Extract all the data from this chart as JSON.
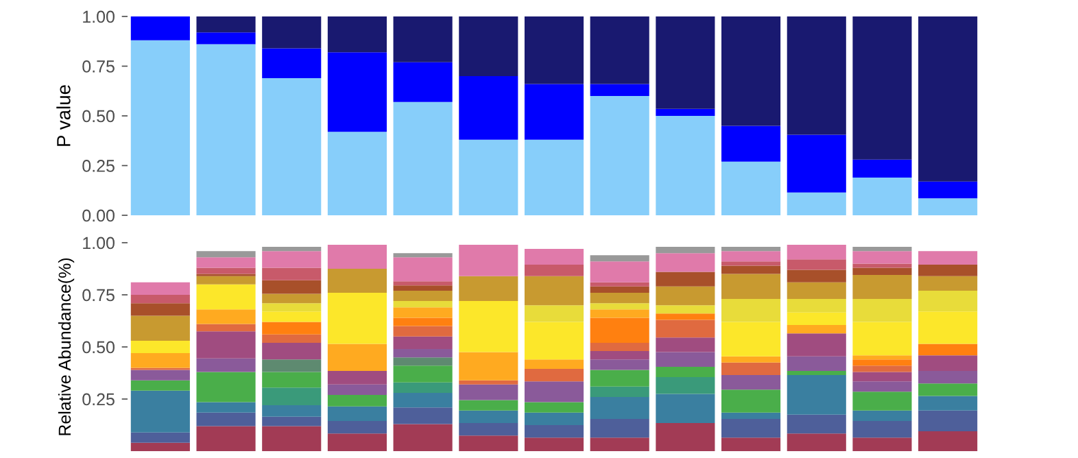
{
  "chart_data": [
    {
      "type": "bar",
      "stacked": true,
      "ylabel": "P value",
      "categories": [
        null,
        null,
        null,
        null,
        null,
        null,
        null,
        null,
        null,
        null,
        null,
        null,
        null
      ],
      "ylim": [
        0,
        1
      ],
      "yticks": [
        {
          "value": 0,
          "label": "0.00"
        },
        {
          "value": 0.25,
          "label": "0.25"
        },
        {
          "value": 0.5,
          "label": "0.50"
        },
        {
          "value": 0.75,
          "label": "0.75"
        },
        {
          "value": 1,
          "label": "1.00"
        }
      ],
      "tick_labels": "y",
      "grid": false,
      "legend": false,
      "series": [
        {
          "color": "#87cefa",
          "values": [
            0.88,
            0.86,
            0.69,
            0.42,
            0.57,
            0.38,
            0.38,
            0.6,
            0.5,
            0.27,
            0.115,
            0.19,
            0.085
          ]
        },
        {
          "color": "#0000ff",
          "values": [
            0.12,
            0.06,
            0.15,
            0.4,
            0.2,
            0.32,
            0.28,
            0.06,
            0.035,
            0.18,
            0.29,
            0.09,
            0.085
          ]
        },
        {
          "color": "#191970",
          "values": [
            null,
            0.08,
            0.16,
            0.18,
            0.23,
            0.3,
            0.34,
            0.34,
            0.465,
            0.55,
            0.595,
            0.72,
            0.83
          ]
        }
      ]
    },
    {
      "type": "bar",
      "stacked": true,
      "ylabel": "Relative Abundance(%)",
      "categories": [
        null,
        null,
        null,
        null,
        null,
        null,
        null,
        null,
        null,
        null,
        null,
        null,
        null
      ],
      "ylim": [
        0,
        1
      ],
      "yticks": [
        {
          "value": 0.25,
          "label": "0.25"
        },
        {
          "value": 0.5,
          "label": "0.50"
        },
        {
          "value": 0.75,
          "label": "0.75"
        },
        {
          "value": 1,
          "label": "1.00"
        }
      ],
      "tick_labels": "y",
      "grid": false,
      "legend": false,
      "series": [
        {
          "color": "#a23b55",
          "values": [
            0.04,
            0.12,
            0.12,
            0.085,
            0.13,
            0.075,
            0.065,
            0.065,
            0.135,
            0.065,
            0.085,
            0.065,
            0.095
          ]
        },
        {
          "color": "#4e5f9a",
          "values": [
            0.05,
            0.065,
            0.045,
            0.06,
            0.08,
            0.06,
            0.06,
            0.09,
            null,
            0.09,
            0.09,
            0.08,
            0.1
          ]
        },
        {
          "color": "#3a7fa0",
          "values": [
            0.2,
            0.05,
            0.055,
            0.07,
            0.07,
            0.06,
            0.06,
            0.105,
            0.14,
            0.03,
            0.19,
            0.05,
            0.07
          ]
        },
        {
          "color": "#3a9a7a",
          "values": [
            null,
            null,
            0.085,
            null,
            0.05,
            null,
            null,
            0.05,
            0.08,
            null,
            null,
            null,
            null
          ]
        },
        {
          "color": "#4aae4a",
          "values": [
            0.05,
            0.145,
            0.075,
            0.055,
            0.08,
            0.05,
            0.05,
            0.08,
            0.05,
            0.11,
            0.02,
            0.09,
            0.06
          ]
        },
        {
          "color": "#5e8a70",
          "values": [
            null,
            null,
            0.06,
            null,
            0.04,
            null,
            null,
            null,
            null,
            null,
            null,
            null,
            null
          ]
        },
        {
          "color": "#8a5a9a",
          "values": [
            0.05,
            0.065,
            null,
            0.05,
            0.04,
            0.075,
            0.1,
            0.05,
            0.07,
            0.07,
            0.07,
            0.05,
            0.06
          ]
        },
        {
          "color": "#a04c80",
          "values": [
            null,
            0.13,
            0.08,
            0.065,
            0.06,
            null,
            null,
            0.04,
            0.07,
            null,
            0.11,
            0.045,
            0.075
          ]
        },
        {
          "color": "#e06a40",
          "values": [
            0.01,
            0.035,
            0.04,
            null,
            0.05,
            0.02,
            0.06,
            0.04,
            0.085,
            0.06,
            null,
            0.03,
            null
          ]
        },
        {
          "color": "#ff8010",
          "values": [
            null,
            null,
            0.06,
            null,
            0.04,
            null,
            null,
            0.12,
            0.03,
            null,
            null,
            0.03,
            0.055
          ]
        },
        {
          "color": "#ffaa20",
          "values": [
            0.07,
            0.07,
            null,
            0.13,
            0.05,
            0.135,
            0.045,
            0.04,
            null,
            0.03,
            0.04,
            0.02,
            null
          ]
        },
        {
          "color": "#fce72a",
          "values": [
            0.06,
            0.12,
            0.05,
            0.245,
            null,
            0.245,
            0.18,
            null,
            null,
            0.165,
            0.06,
            0.16,
            0.155
          ]
        },
        {
          "color": "#e8dc3a",
          "values": [
            null,
            null,
            0.04,
            null,
            0.03,
            null,
            0.08,
            0.03,
            0.04,
            0.11,
            0.065,
            0.11,
            0.1
          ]
        },
        {
          "color": "#c89a30",
          "values": [
            0.12,
            0.04,
            0.045,
            0.115,
            0.05,
            0.12,
            0.14,
            0.05,
            0.09,
            0.12,
            0.08,
            0.115,
            0.07
          ]
        },
        {
          "color": "#a8502a",
          "values": [
            0.06,
            0.01,
            0.065,
            null,
            0.025,
            null,
            null,
            0.03,
            0.07,
            0.04,
            0.06,
            0.035,
            0.055
          ]
        },
        {
          "color": "#c85a6a",
          "values": [
            0.04,
            0.03,
            0.06,
            null,
            0.02,
            null,
            0.055,
            0.02,
            null,
            0.02,
            0.05,
            0.02,
            null
          ]
        },
        {
          "color": "#e07aaa",
          "values": [
            0.06,
            0.05,
            0.08,
            0.115,
            0.115,
            0.15,
            0.075,
            0.1,
            0.09,
            0.05,
            0.07,
            0.06,
            0.065
          ]
        },
        {
          "color": "#999999",
          "values": [
            null,
            0.03,
            0.02,
            null,
            0.02,
            null,
            null,
            0.03,
            0.03,
            0.02,
            null,
            0.02,
            null
          ]
        }
      ]
    }
  ]
}
